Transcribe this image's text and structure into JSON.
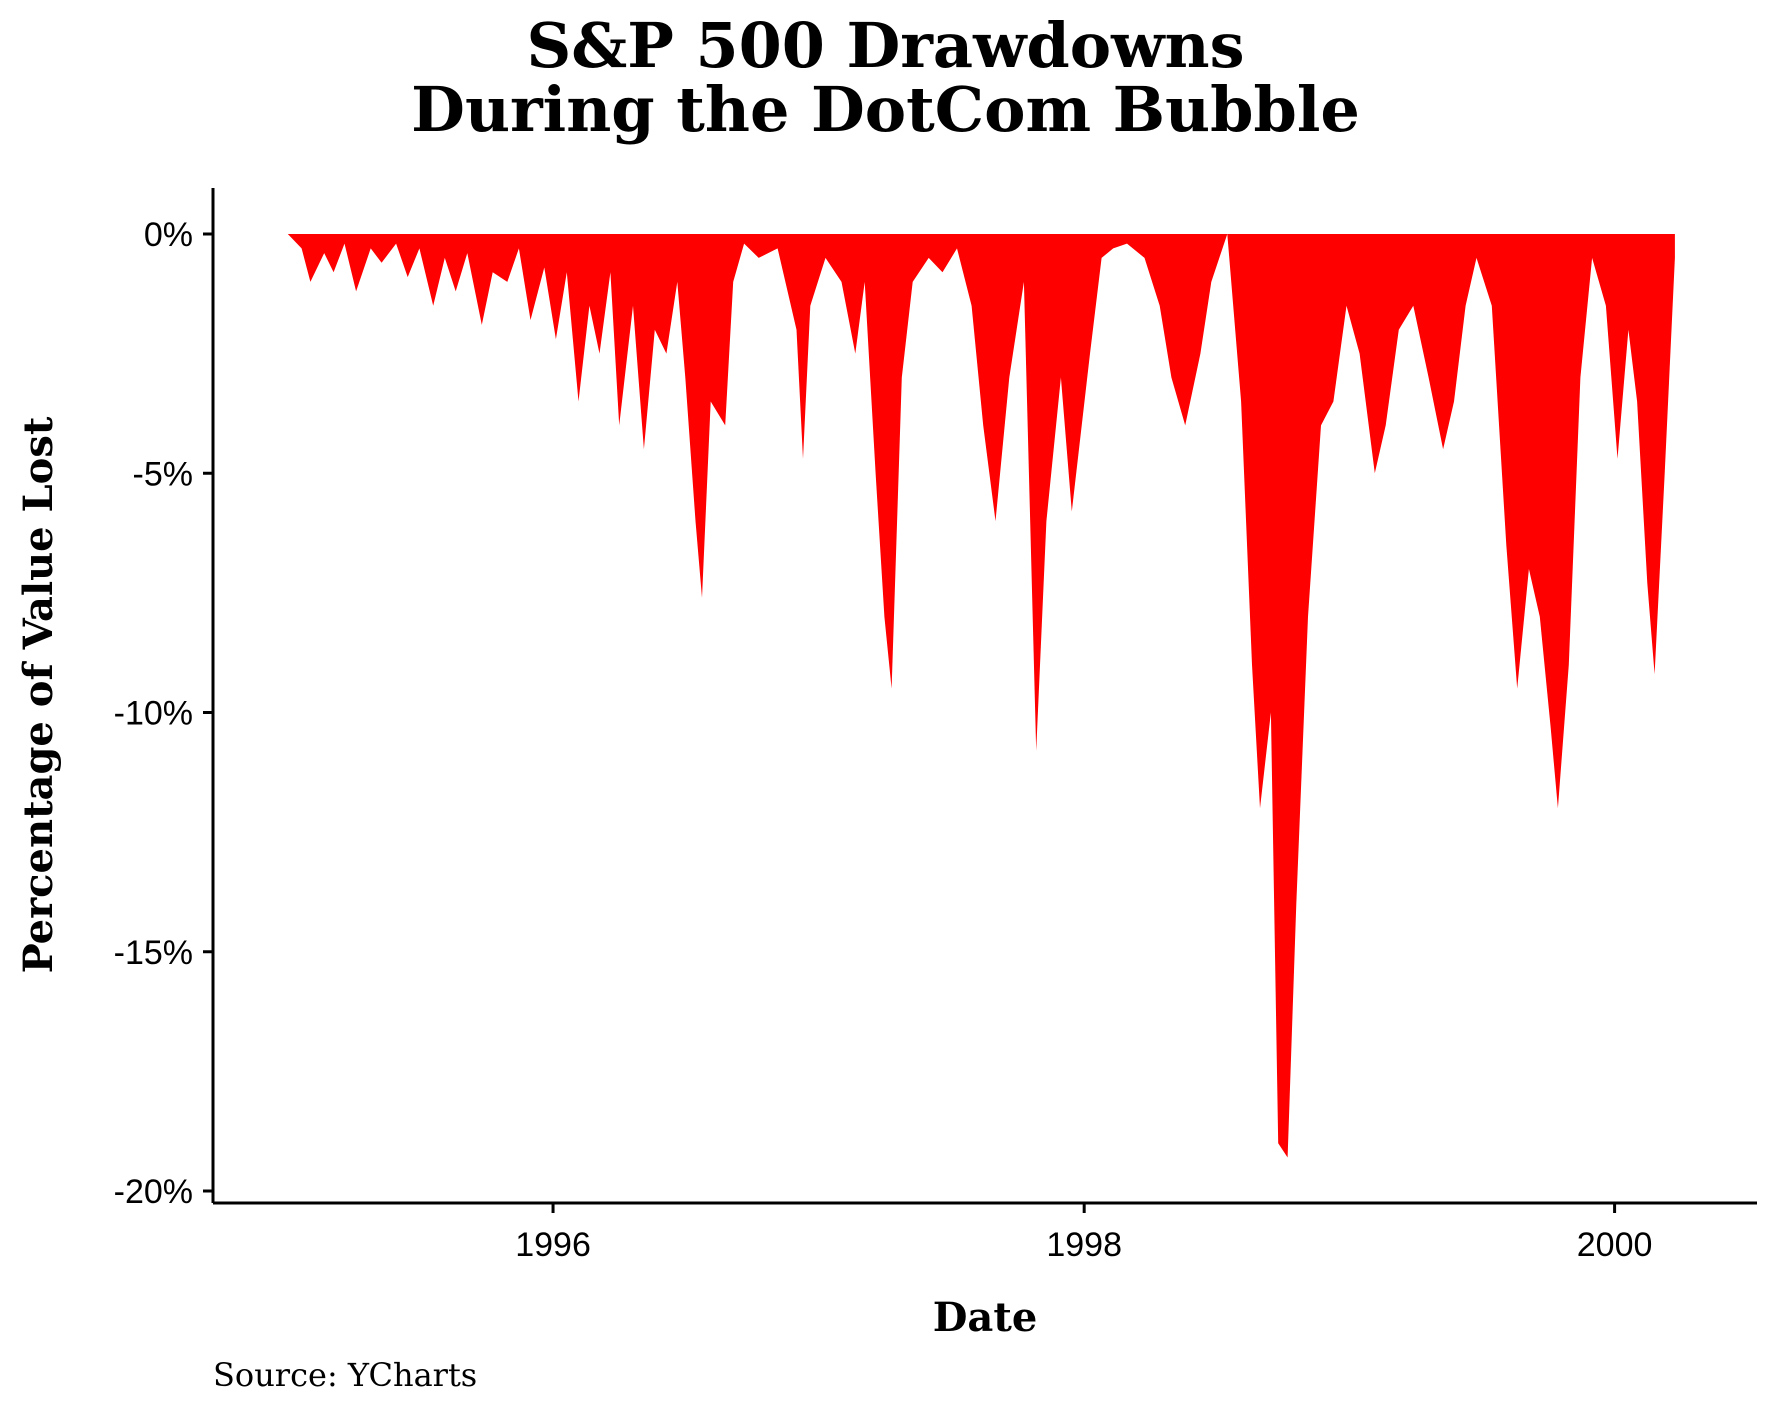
{
  "chart_data": {
    "type": "area",
    "title_lines": [
      "S&P 500 Drawdowns",
      "During the DotCom Bubble"
    ],
    "xlabel": "Date",
    "ylabel": "Percentage of Value Lost",
    "x_ticks": [
      "1996",
      "1998",
      "2000"
    ],
    "y_ticks": [
      "0%",
      "-5%",
      "-10%",
      "-15%",
      "-20%"
    ],
    "ylim": [
      -20,
      0
    ],
    "xlim": [
      "1994-09-20",
      "2000-07-15"
    ],
    "grid": false,
    "legend": "none",
    "fill_color": "#ff0000",
    "series": [
      {
        "x": [
          "1995-01-01",
          "1995-01-20",
          "1995-02-01",
          "1995-02-20",
          "1995-03-05",
          "1995-03-20",
          "1995-04-05",
          "1995-04-25",
          "1995-05-10",
          "1995-05-30",
          "1995-06-15",
          "1995-07-01",
          "1995-07-20",
          "1995-08-05",
          "1995-08-20",
          "1995-09-05",
          "1995-09-25",
          "1995-10-10",
          "1995-10-30",
          "1995-11-15",
          "1995-12-01",
          "1995-12-20",
          "1996-01-05",
          "1996-01-20",
          "1996-02-05",
          "1996-02-20",
          "1996-03-05",
          "1996-03-20",
          "1996-04-01",
          "1996-04-20",
          "1996-05-05",
          "1996-05-20",
          "1996-06-05",
          "1996-06-20",
          "1996-07-01",
          "1996-07-15",
          "1996-07-24",
          "1996-08-05",
          "1996-08-25",
          "1996-09-05",
          "1996-09-20",
          "1996-10-10",
          "1996-11-05",
          "1996-12-01",
          "1996-12-10",
          "1996-12-20",
          "1997-01-10",
          "1997-02-01",
          "1997-02-20",
          "1997-03-05",
          "1997-03-20",
          "1997-04-01",
          "1997-04-11",
          "1997-04-25",
          "1997-05-10",
          "1997-06-01",
          "1997-06-20",
          "1997-07-10",
          "1997-07-30",
          "1997-08-15",
          "1997-09-01",
          "1997-09-20",
          "1997-10-10",
          "1997-10-27",
          "1997-11-10",
          "1997-11-30",
          "1997-12-15",
          "1998-01-09",
          "1998-01-25",
          "1998-02-10",
          "1998-03-01",
          "1998-03-25",
          "1998-04-15",
          "1998-05-01",
          "1998-05-20",
          "1998-06-10",
          "1998-06-25",
          "1998-07-17",
          "1998-08-05",
          "1998-08-20",
          "1998-08-31",
          "1998-09-15",
          "1998-09-25",
          "1998-10-08",
          "1998-10-20",
          "1998-11-05",
          "1998-11-23",
          "1998-12-10",
          "1998-12-28",
          "1999-01-15",
          "1999-02-05",
          "1999-02-20",
          "1999-03-10",
          "1999-03-30",
          "1999-04-20",
          "1999-05-10",
          "1999-05-25",
          "1999-06-10",
          "1999-06-25",
          "1999-07-16",
          "1999-08-05",
          "1999-08-20",
          "1999-09-05",
          "1999-09-20",
          "1999-10-05",
          "1999-10-15",
          "1999-10-30",
          "1999-11-15",
          "1999-12-01",
          "1999-12-20",
          "2000-01-05",
          "2000-01-20",
          "2000-02-01",
          "2000-02-15",
          "2000-02-25",
          "2000-03-10",
          "2000-03-24"
        ],
        "y": [
          0,
          -0.3,
          -1.0,
          -0.4,
          -0.8,
          -0.2,
          -1.2,
          -0.3,
          -0.6,
          -0.2,
          -0.9,
          -0.3,
          -1.5,
          -0.5,
          -1.2,
          -0.4,
          -1.9,
          -0.8,
          -1.0,
          -0.3,
          -1.8,
          -0.7,
          -2.2,
          -0.8,
          -3.5,
          -1.5,
          -2.5,
          -0.8,
          -4.0,
          -1.5,
          -4.5,
          -2.0,
          -2.5,
          -1.0,
          -3.0,
          -6.0,
          -7.6,
          -3.5,
          -4.0,
          -1.0,
          -0.2,
          -0.5,
          -0.3,
          -2.0,
          -4.7,
          -1.5,
          -0.5,
          -1.0,
          -2.5,
          -1.0,
          -5.0,
          -8.0,
          -9.5,
          -3.0,
          -1.0,
          -0.5,
          -0.8,
          -0.3,
          -1.5,
          -4.0,
          -6.0,
          -3.0,
          -1.0,
          -10.8,
          -6.0,
          -3.0,
          -5.8,
          -2.5,
          -0.5,
          -0.3,
          -0.2,
          -0.5,
          -1.5,
          -3.0,
          -4.0,
          -2.5,
          -1.0,
          0,
          -3.5,
          -9.0,
          -12.0,
          -10.0,
          -19.0,
          -19.3,
          -14.0,
          -8.0,
          -4.0,
          -3.5,
          -1.5,
          -2.5,
          -5.0,
          -4.0,
          -2.0,
          -1.5,
          -3.0,
          -4.5,
          -3.5,
          -1.5,
          -0.5,
          -1.5,
          -6.5,
          -9.5,
          -7.0,
          -8.0,
          -10.3,
          -12.0,
          -9.0,
          -3.0,
          -0.5,
          -1.5,
          -4.7,
          -2.0,
          -3.5,
          -7.3,
          -9.2,
          -5.0,
          -0.5
        ]
      }
    ]
  },
  "source_caption": "Source: YCharts"
}
